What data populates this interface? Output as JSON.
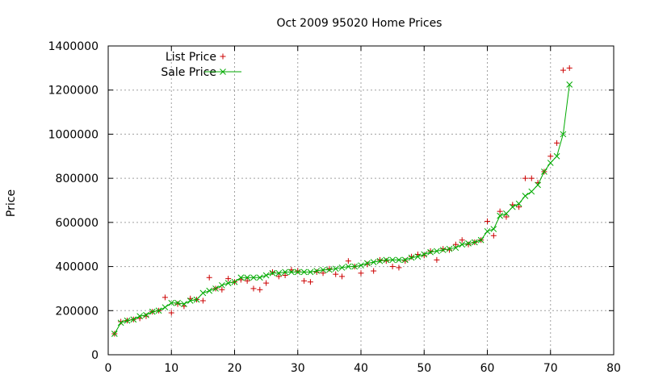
{
  "chart_data": {
    "type": "line",
    "title": "Oct 2009 95020 Home Prices",
    "xlabel": "",
    "ylabel": "Price",
    "xlim": [
      0,
      80
    ],
    "ylim": [
      0,
      1400000
    ],
    "x_ticks": [
      0,
      10,
      20,
      30,
      40,
      50,
      60,
      70,
      80
    ],
    "y_ticks": [
      0,
      200000,
      400000,
      600000,
      800000,
      1000000,
      1200000,
      1400000
    ],
    "grid": true,
    "legend_position": "top-left",
    "series": [
      {
        "name": "List Price",
        "color": "#cc0000",
        "marker": "plus",
        "x": [
          1,
          2,
          3,
          4,
          5,
          6,
          7,
          8,
          9,
          10,
          11,
          12,
          13,
          14,
          15,
          16,
          17,
          18,
          19,
          20,
          21,
          22,
          23,
          24,
          25,
          26,
          27,
          28,
          29,
          30,
          31,
          32,
          33,
          34,
          35,
          36,
          37,
          38,
          39,
          40,
          41,
          42,
          43,
          44,
          45,
          46,
          47,
          48,
          49,
          50,
          51,
          52,
          53,
          54,
          55,
          56,
          57,
          58,
          59,
          60,
          61,
          62,
          63,
          64,
          65,
          66,
          67,
          68,
          69,
          70,
          71,
          72,
          73
        ],
        "values": [
          95000,
          150000,
          155000,
          160000,
          165000,
          175000,
          195000,
          200000,
          260000,
          190000,
          230000,
          220000,
          255000,
          250000,
          245000,
          350000,
          300000,
          295000,
          345000,
          330000,
          340000,
          335000,
          300000,
          295000,
          325000,
          375000,
          355000,
          360000,
          385000,
          380000,
          335000,
          330000,
          375000,
          370000,
          390000,
          365000,
          355000,
          425000,
          400000,
          370000,
          410000,
          380000,
          430000,
          425000,
          400000,
          395000,
          425000,
          445000,
          455000,
          450000,
          470000,
          430000,
          480000,
          475000,
          500000,
          520000,
          500000,
          510000,
          520000,
          605000,
          540000,
          650000,
          625000,
          680000,
          670000,
          800000,
          800000,
          780000,
          830000,
          900000,
          960000,
          1290000,
          1300000
        ]
      },
      {
        "name": "Sale Price",
        "color": "#00aa00",
        "marker": "cross",
        "x": [
          1,
          2,
          3,
          4,
          5,
          6,
          7,
          8,
          9,
          10,
          11,
          12,
          13,
          14,
          15,
          16,
          17,
          18,
          19,
          20,
          21,
          22,
          23,
          24,
          25,
          26,
          27,
          28,
          29,
          30,
          31,
          32,
          33,
          34,
          35,
          36,
          37,
          38,
          39,
          40,
          41,
          42,
          43,
          44,
          45,
          46,
          47,
          48,
          49,
          50,
          51,
          52,
          53,
          54,
          55,
          56,
          57,
          58,
          59,
          60,
          61,
          62,
          63,
          64,
          65,
          66,
          67,
          68,
          69,
          70,
          71,
          72,
          73
        ],
        "values": [
          95000,
          145000,
          155000,
          160000,
          175000,
          180000,
          195000,
          200000,
          215000,
          235000,
          235000,
          230000,
          245000,
          250000,
          280000,
          290000,
          300000,
          315000,
          325000,
          330000,
          350000,
          350000,
          350000,
          350000,
          360000,
          370000,
          370000,
          375000,
          375000,
          375000,
          375000,
          375000,
          380000,
          385000,
          385000,
          390000,
          395000,
          400000,
          400000,
          405000,
          415000,
          420000,
          425000,
          430000,
          430000,
          430000,
          430000,
          440000,
          445000,
          455000,
          465000,
          470000,
          475000,
          480000,
          485000,
          500000,
          505000,
          510000,
          520000,
          560000,
          570000,
          630000,
          640000,
          670000,
          685000,
          720000,
          740000,
          770000,
          830000,
          870000,
          900000,
          1000000,
          1225000
        ]
      }
    ]
  }
}
